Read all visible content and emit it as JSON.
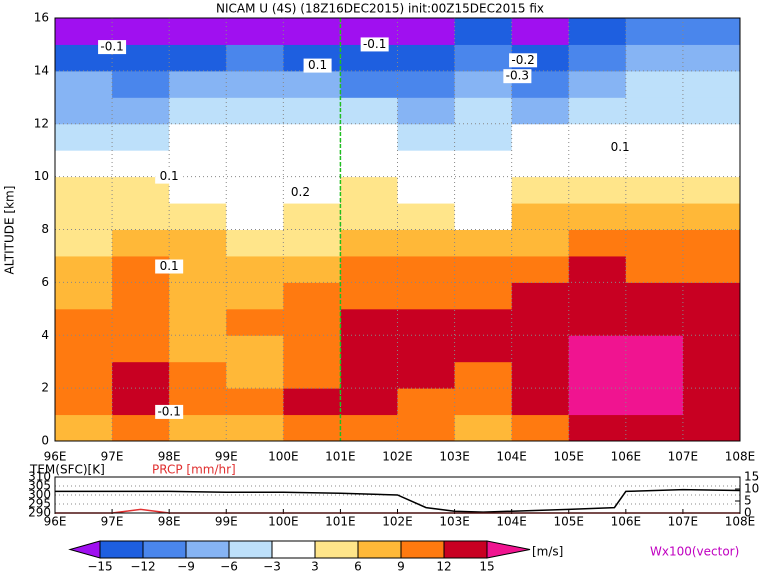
{
  "chart_data": {
    "type": "heatmap",
    "title": "NICAM U (4S) (18Z16DEC2015) init:00Z15DEC2015 fix",
    "ylabel": "ALTITUDE [km]",
    "x": [
      96.5,
      97.5,
      98.5,
      99.5,
      100.5,
      101.5,
      102.5,
      103.5,
      104.5,
      105.5,
      106.5,
      107.5
    ],
    "y": [
      0.5,
      1.5,
      2.5,
      3.5,
      4.5,
      5.5,
      6.5,
      7.5,
      8.5,
      9.5,
      10.5,
      11.5,
      12.5,
      13.5,
      14.5,
      15.5
    ],
    "values": [
      [
        6,
        9,
        6,
        6,
        9,
        9,
        9,
        6,
        9,
        12,
        12,
        12
      ],
      [
        9,
        12,
        9,
        9,
        12,
        12,
        9,
        9,
        12,
        16,
        16,
        12
      ],
      [
        9,
        13,
        9,
        6,
        9,
        12,
        12,
        9,
        12,
        16,
        16,
        13
      ],
      [
        9,
        9,
        6,
        6,
        9,
        12,
        12,
        12,
        13,
        16,
        16,
        13
      ],
      [
        9,
        9,
        6,
        9,
        9,
        12,
        12,
        12,
        13,
        13,
        13,
        13
      ],
      [
        6,
        9,
        6,
        6,
        9,
        9,
        9,
        9,
        12,
        13,
        13,
        12
      ],
      [
        6,
        9,
        6,
        6,
        6,
        9,
        9,
        9,
        9,
        12,
        9,
        9
      ],
      [
        3,
        6,
        6,
        4,
        4,
        6,
        6,
        6,
        6,
        9,
        9,
        9
      ],
      [
        4,
        4,
        4,
        2,
        4,
        4,
        4,
        2,
        6,
        6,
        6,
        6
      ],
      [
        4,
        4,
        2,
        2,
        2,
        4,
        2,
        2,
        4,
        4,
        4,
        4
      ],
      [
        1,
        -1,
        1,
        1,
        2,
        2,
        1,
        1,
        1,
        1,
        1,
        1
      ],
      [
        -4,
        -4,
        -2,
        -2,
        -1,
        -2,
        -4,
        -4,
        -2,
        -2,
        -1,
        -2
      ],
      [
        -7,
        -7,
        -4,
        -4,
        -4,
        -4,
        -7,
        -4,
        -7,
        -4,
        -4,
        -4
      ],
      [
        -7,
        -10,
        -7,
        -7,
        -7,
        -10,
        -10,
        -7,
        -10,
        -7,
        -4,
        -4
      ],
      [
        -13,
        -13,
        -13,
        -10,
        -13,
        -13,
        -13,
        -10,
        -13,
        -10,
        -7,
        -7
      ],
      [
        -16,
        -16,
        -16,
        -16,
        -16,
        -16,
        -16,
        -13,
        -16,
        -13,
        -10,
        -10
      ]
    ],
    "xlim": [
      96,
      108
    ],
    "ylim": [
      0,
      16
    ],
    "xticks": [
      {
        "value": 96,
        "label": "96E"
      },
      {
        "value": 97,
        "label": "97E"
      },
      {
        "value": 98,
        "label": "98E"
      },
      {
        "value": 99,
        "label": "99E"
      },
      {
        "value": 100,
        "label": "100E"
      },
      {
        "value": 101,
        "label": "101E"
      },
      {
        "value": 102,
        "label": "102E"
      },
      {
        "value": 103,
        "label": "103E"
      },
      {
        "value": 104,
        "label": "104E"
      },
      {
        "value": 105,
        "label": "105E"
      },
      {
        "value": 106,
        "label": "106E"
      },
      {
        "value": 107,
        "label": "107E"
      },
      {
        "value": 108,
        "label": "108E"
      }
    ],
    "yticks": [
      0,
      2,
      4,
      6,
      8,
      10,
      12,
      14,
      16
    ],
    "grid": true,
    "vline": 101,
    "annotations": [
      {
        "text": "-0.1",
        "x": 97.0,
        "y": 14.9
      },
      {
        "text": "-0.1",
        "x": 101.6,
        "y": 15.0
      },
      {
        "text": "-0.2",
        "x": 104.2,
        "y": 14.4
      },
      {
        "text": "-0.3",
        "x": 104.1,
        "y": 13.8
      },
      {
        "text": "0.1",
        "x": 100.6,
        "y": 14.2
      },
      {
        "text": "0.1",
        "x": 98.0,
        "y": 10.0
      },
      {
        "text": "0.2",
        "x": 100.3,
        "y": 9.4
      },
      {
        "text": "0.1",
        "x": 98.0,
        "y": 6.6
      },
      {
        "text": "-0.1",
        "x": 98.0,
        "y": 1.1
      },
      {
        "text": "0.1",
        "x": 105.9,
        "y": 11.1
      }
    ],
    "levels": [
      -15,
      -12,
      -9,
      -6,
      -3,
      3,
      6,
      9,
      12,
      15
    ],
    "colors": [
      "#a010f0",
      "#1e5fe0",
      "#4a86ec",
      "#86b4f4",
      "#bde0fa",
      "#ffffff",
      "#ffe58a",
      "#ffb838",
      "#ff7a10",
      "#c80022",
      "#f01490"
    ],
    "colorbar_ticks": [
      {
        "value": -15,
        "label": "−15"
      },
      {
        "value": -12,
        "label": "−12"
      },
      {
        "value": -9,
        "label": "−9"
      },
      {
        "value": -6,
        "label": "−6"
      },
      {
        "value": -3,
        "label": "−3"
      },
      3,
      6,
      9,
      12,
      15
    ],
    "colorbar_unit": "[m/s]",
    "vector_label": "Wx100(vector)",
    "sub": {
      "tem_label": "TEM(SFC)[K]",
      "prcp_label": "PRCP [mm/hr]",
      "tem_x": [
        96,
        97,
        98,
        99,
        100,
        101,
        102,
        102.5,
        103,
        103.5,
        104,
        105,
        105.8,
        106,
        107,
        108
      ],
      "tem": [
        302,
        302,
        302,
        301.5,
        301.5,
        301,
        300,
        293,
        291,
        290.5,
        291,
        292,
        293,
        302,
        303,
        302.5
      ],
      "prcp_x": [
        96,
        97,
        97.5,
        98,
        99,
        108
      ],
      "prcp": [
        0,
        0,
        1.5,
        0,
        0,
        0
      ],
      "ylim": [
        290,
        310
      ],
      "yticks": [
        290,
        295,
        300,
        305,
        310
      ],
      "y2lim": [
        0,
        15
      ],
      "y2ticks": [
        0,
        5,
        10,
        15
      ]
    }
  }
}
